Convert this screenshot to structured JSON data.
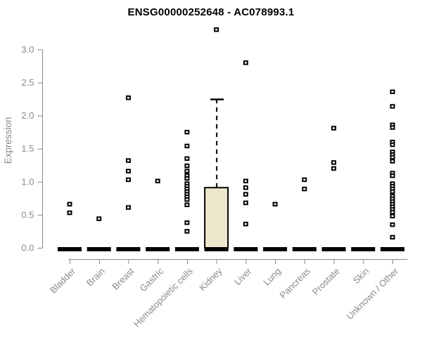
{
  "chart_data": {
    "type": "boxplot",
    "title": "ENSG00000252648 - AC078993.1",
    "ylabel": "Expression",
    "xlabel": "",
    "ylim": [
      0,
      3
    ],
    "yticks": [
      "0.0",
      "0.5",
      "1.0",
      "1.5",
      "2.0",
      "2.5",
      "3.0"
    ],
    "ytick_values": [
      0,
      0.5,
      1,
      1.5,
      2,
      2.5,
      3
    ],
    "grid": false,
    "legend": null,
    "categories": [
      "Bladder",
      "Brain",
      "Breast",
      "Gastric",
      "Hematopoietic cells",
      "Kidney",
      "Liver",
      "Lung",
      "Pancreas",
      "Prostate",
      "Skin",
      "Unknown / Other"
    ],
    "series": [
      {
        "category": "Bladder",
        "median": 0,
        "points": [
          0.66,
          0.53
        ]
      },
      {
        "category": "Brain",
        "median": 0,
        "points": [
          0.44
        ]
      },
      {
        "category": "Breast",
        "median": 0,
        "points": [
          2.27,
          1.32,
          1.16,
          1.03,
          0.61
        ]
      },
      {
        "category": "Gastric",
        "median": 0,
        "points": [
          1.01
        ]
      },
      {
        "category": "Hematopoietic cells",
        "median": 0,
        "points": [
          1.75,
          1.54,
          1.35,
          1.24,
          1.16,
          1.09,
          1.05,
          0.97,
          0.93,
          0.89,
          0.85,
          0.81,
          0.77,
          0.73,
          0.65,
          0.38,
          0.25
        ]
      },
      {
        "category": "Kidney",
        "median": 0,
        "box": {
          "q1": 0,
          "q3": 0.91,
          "whisker_high": 2.25
        },
        "points": [
          3.3
        ]
      },
      {
        "category": "Liver",
        "median": 0,
        "points": [
          2.8,
          1.01,
          0.91,
          0.81,
          0.68,
          0.36
        ]
      },
      {
        "category": "Lung",
        "median": 0,
        "points": [
          0.66
        ]
      },
      {
        "category": "Pancreas",
        "median": 0,
        "points": [
          1.03,
          0.89
        ]
      },
      {
        "category": "Prostate",
        "median": 0,
        "points": [
          1.81,
          1.29,
          1.2
        ]
      },
      {
        "category": "Skin",
        "median": 0,
        "points": []
      },
      {
        "category": "Unknown / Other",
        "median": 0,
        "points": [
          2.36,
          2.14,
          1.86,
          1.82,
          1.6,
          1.56,
          1.45,
          1.41,
          1.37,
          1.31,
          1.13,
          1.09,
          0.97,
          0.93,
          0.89,
          0.85,
          0.78,
          0.74,
          0.7,
          0.66,
          0.62,
          0.58,
          0.54,
          0.48,
          0.35,
          0.16
        ]
      }
    ],
    "colors": {
      "box_fill": "#ede8cd",
      "marker_stroke": "#000000",
      "marker_fill": "#ffffff",
      "median_bar": "#000000",
      "axis": "#888888",
      "tick_label": "#8a8a8a",
      "title": "#000000"
    }
  }
}
